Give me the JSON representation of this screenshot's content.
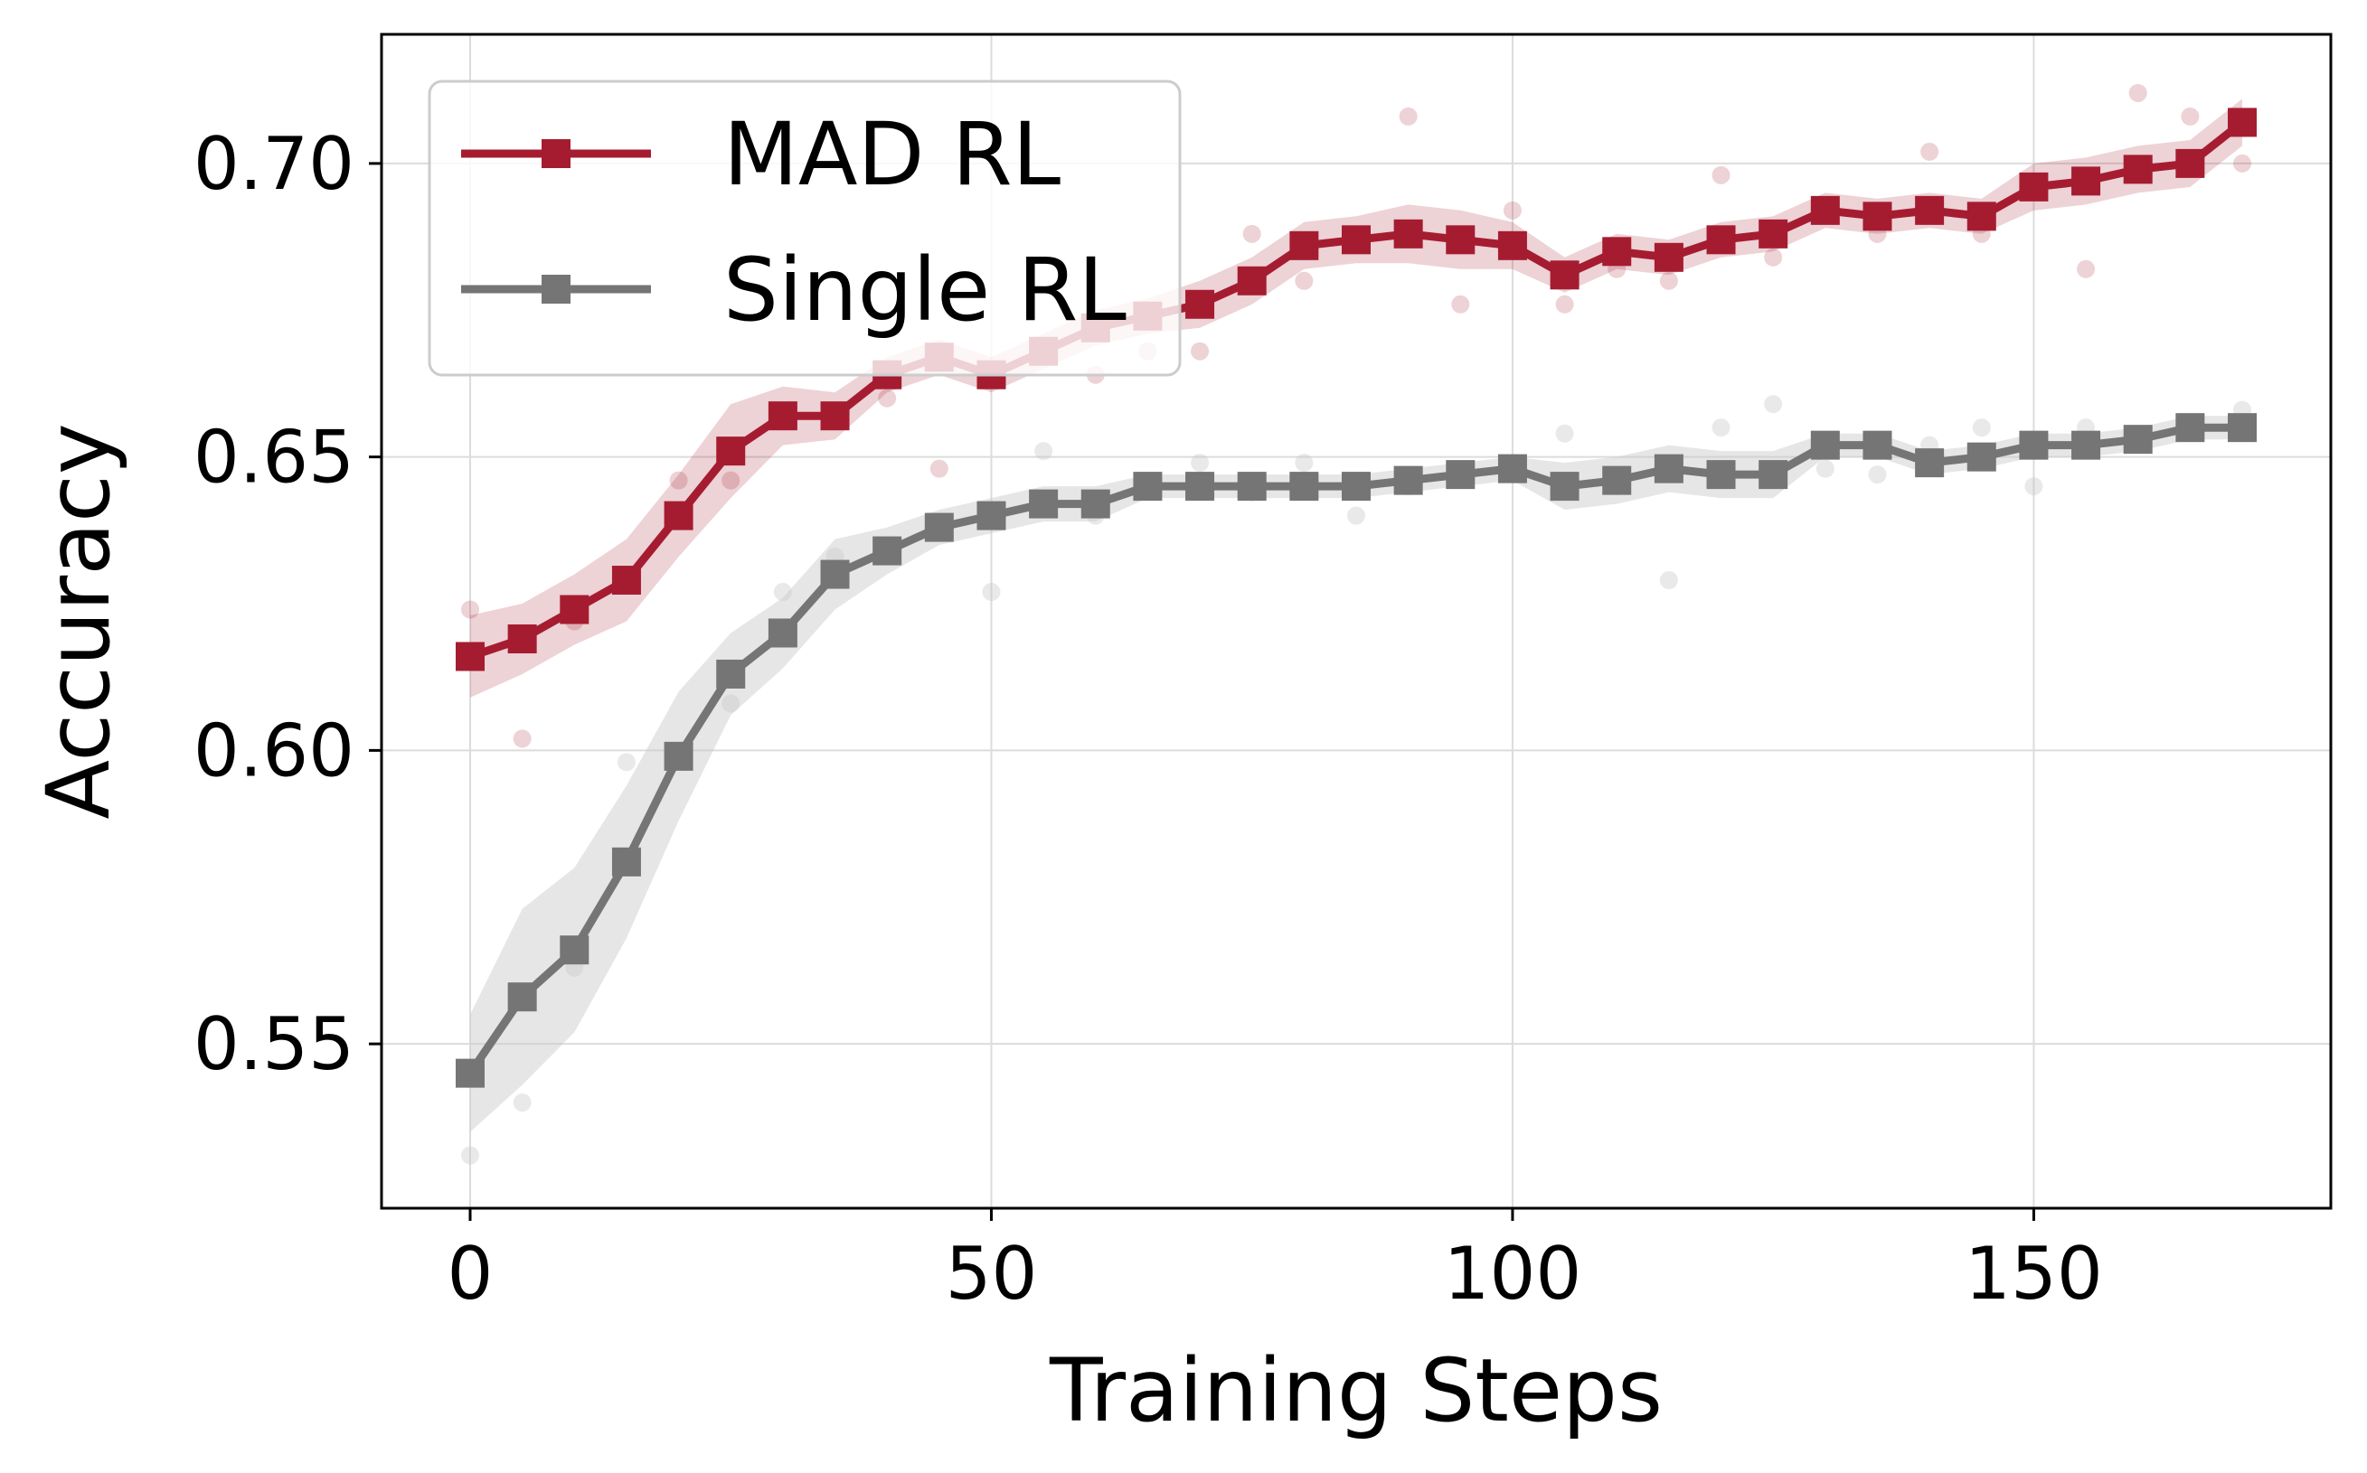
{
  "chart_data": {
    "type": "line",
    "xlabel": "Training Steps",
    "ylabel": "Accuracy",
    "xlim": [
      -8.5,
      178.5
    ],
    "ylim": [
      0.522,
      0.722
    ],
    "xticks": [
      0,
      50,
      100,
      150
    ],
    "xtick_labels": [
      "0",
      "50",
      "100",
      "150"
    ],
    "yticks": [
      0.55,
      0.6,
      0.65,
      0.7
    ],
    "ytick_labels": [
      "0.55",
      "0.60",
      "0.65",
      "0.70"
    ],
    "grid": true,
    "legend_position": "top-left",
    "marker": "square",
    "x": [
      0,
      5,
      10,
      15,
      20,
      25,
      30,
      35,
      40,
      45,
      50,
      55,
      60,
      65,
      70,
      75,
      80,
      85,
      90,
      95,
      100,
      105,
      110,
      115,
      120,
      125,
      130,
      135,
      140,
      145,
      150,
      155,
      160,
      165,
      170
    ],
    "series": [
      {
        "name": "MAD RL",
        "color": "#a51c30",
        "band_color": "#a51c30",
        "values": [
          0.616,
          0.619,
          0.624,
          0.629,
          0.64,
          0.651,
          0.657,
          0.657,
          0.664,
          0.667,
          0.664,
          0.668,
          0.672,
          0.674,
          0.676,
          0.68,
          0.686,
          0.687,
          0.688,
          0.687,
          0.686,
          0.681,
          0.685,
          0.684,
          0.687,
          0.688,
          0.692,
          0.691,
          0.692,
          0.691,
          0.696,
          0.697,
          0.699,
          0.7,
          0.707
        ],
        "band_halfwidth": [
          0.007,
          0.006,
          0.006,
          0.007,
          0.007,
          0.008,
          0.005,
          0.004,
          0.003,
          0.003,
          0.003,
          0.003,
          0.003,
          0.003,
          0.004,
          0.004,
          0.004,
          0.004,
          0.005,
          0.005,
          0.004,
          0.003,
          0.003,
          0.003,
          0.003,
          0.003,
          0.003,
          0.003,
          0.003,
          0.003,
          0.004,
          0.004,
          0.004,
          0.004,
          0.004
        ],
        "scatter": [
          [
            0,
            0.624
          ],
          [
            5,
            0.602
          ],
          [
            10,
            0.622
          ],
          [
            20,
            0.646
          ],
          [
            25,
            0.646
          ],
          [
            40,
            0.66
          ],
          [
            45,
            0.648
          ],
          [
            60,
            0.664
          ],
          [
            65,
            0.668
          ],
          [
            70,
            0.668
          ],
          [
            75,
            0.688
          ],
          [
            80,
            0.68
          ],
          [
            90,
            0.708
          ],
          [
            95,
            0.676
          ],
          [
            100,
            0.692
          ],
          [
            105,
            0.676
          ],
          [
            110,
            0.682
          ],
          [
            115,
            0.68
          ],
          [
            120,
            0.698
          ],
          [
            125,
            0.684
          ],
          [
            135,
            0.688
          ],
          [
            140,
            0.702
          ],
          [
            145,
            0.688
          ],
          [
            155,
            0.682
          ],
          [
            160,
            0.712
          ],
          [
            165,
            0.708
          ],
          [
            170,
            0.7
          ]
        ]
      },
      {
        "name": "Single RL",
        "color": "#757575",
        "band_color": "#c8c8c8",
        "values": [
          0.545,
          0.558,
          0.566,
          0.581,
          0.599,
          0.613,
          0.62,
          0.63,
          0.634,
          0.638,
          0.64,
          0.642,
          0.642,
          0.645,
          0.645,
          0.645,
          0.645,
          0.645,
          0.646,
          0.647,
          0.648,
          0.645,
          0.646,
          0.648,
          0.647,
          0.647,
          0.652,
          0.652,
          0.649,
          0.65,
          0.652,
          0.652,
          0.653,
          0.655,
          0.655
        ],
        "band_halfwidth": [
          0.01,
          0.015,
          0.014,
          0.013,
          0.011,
          0.007,
          0.006,
          0.006,
          0.004,
          0.003,
          0.003,
          0.003,
          0.003,
          0.002,
          0.002,
          0.002,
          0.002,
          0.002,
          0.002,
          0.002,
          0.002,
          0.004,
          0.004,
          0.004,
          0.004,
          0.004,
          0.002,
          0.002,
          0.002,
          0.002,
          0.002,
          0.002,
          0.002,
          0.002,
          0.002
        ],
        "scatter": [
          [
            0,
            0.531
          ],
          [
            5,
            0.54
          ],
          [
            10,
            0.563
          ],
          [
            15,
            0.598
          ],
          [
            25,
            0.608
          ],
          [
            30,
            0.627
          ],
          [
            35,
            0.633
          ],
          [
            50,
            0.627
          ],
          [
            55,
            0.651
          ],
          [
            60,
            0.64
          ],
          [
            70,
            0.649
          ],
          [
            75,
            0.644
          ],
          [
            80,
            0.649
          ],
          [
            85,
            0.64
          ],
          [
            90,
            0.645
          ],
          [
            100,
            0.649
          ],
          [
            105,
            0.654
          ],
          [
            110,
            0.645
          ],
          [
            115,
            0.629
          ],
          [
            120,
            0.655
          ],
          [
            125,
            0.659
          ],
          [
            130,
            0.648
          ],
          [
            135,
            0.647
          ],
          [
            140,
            0.652
          ],
          [
            145,
            0.655
          ],
          [
            150,
            0.645
          ],
          [
            155,
            0.655
          ],
          [
            170,
            0.658
          ]
        ]
      }
    ]
  }
}
